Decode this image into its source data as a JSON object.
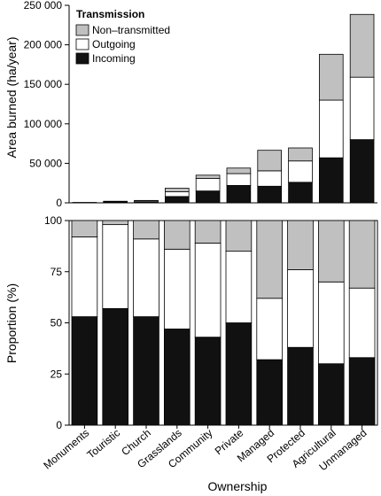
{
  "chart_data": [
    {
      "type": "bar",
      "stacked": true,
      "ylabel": "Area burned (ha/year)",
      "ylim": [
        0,
        250000
      ],
      "yticks": [
        0,
        50000,
        100000,
        150000,
        200000,
        250000
      ],
      "ytick_labels": [
        "0",
        "50 000",
        "100 000",
        "150 000",
        "200 000",
        "250 000"
      ],
      "categories": [
        "Monuments",
        "Touristic",
        "Church",
        "Grasslands",
        "Community",
        "Private",
        "Managed",
        "Protected",
        "Agricultural",
        "Unmanaged"
      ],
      "series": [
        {
          "name": "Incoming",
          "color": "#111111",
          "values": [
            200,
            1000,
            1500,
            8000,
            15000,
            22000,
            21000,
            26000,
            57000,
            80000
          ]
        },
        {
          "name": "Outgoing",
          "color": "#ffffff",
          "values": [
            150,
            800,
            1300,
            6000,
            16000,
            15000,
            19500,
            27000,
            73000,
            79000
          ]
        },
        {
          "name": "Non–transmitted",
          "color": "#c0c0c0",
          "values": [
            50,
            200,
            200,
            4500,
            4000,
            7000,
            26000,
            16500,
            58000,
            79500
          ]
        }
      ],
      "legend": {
        "title": "Transmission",
        "placement": "top-left"
      },
      "grid": false
    },
    {
      "type": "bar",
      "stacked": true,
      "ylabel": "Proportion (%)",
      "xlabel": "Ownership",
      "ylim": [
        0,
        100
      ],
      "yticks": [
        0,
        25,
        50,
        75,
        100
      ],
      "ytick_labels": [
        "0",
        "25",
        "50",
        "75",
        "100"
      ],
      "categories": [
        "Monuments",
        "Touristic",
        "Church",
        "Grasslands",
        "Community",
        "Private",
        "Managed",
        "Protected",
        "Agricultural",
        "Unmanaged"
      ],
      "series": [
        {
          "name": "Incoming",
          "color": "#111111",
          "values": [
            53,
            57,
            53,
            47,
            43,
            50,
            32,
            38,
            30,
            33
          ]
        },
        {
          "name": "Outgoing",
          "color": "#ffffff",
          "values": [
            39,
            41,
            38,
            39,
            46,
            35,
            30,
            38,
            40,
            34
          ]
        },
        {
          "name": "Non–transmitted",
          "color": "#c0c0c0",
          "values": [
            8,
            2,
            9,
            14,
            11,
            15,
            38,
            24,
            30,
            33
          ]
        }
      ],
      "grid": false
    }
  ]
}
